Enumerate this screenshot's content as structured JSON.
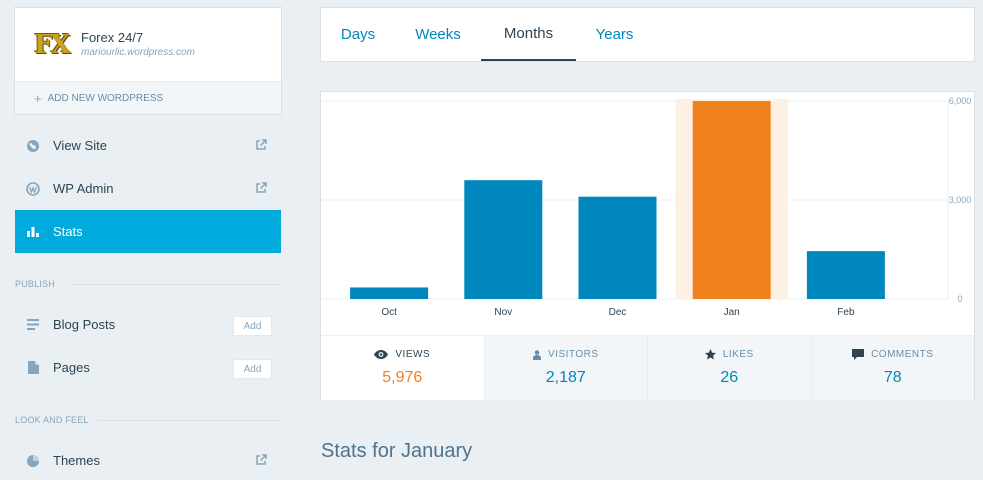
{
  "site": {
    "logo_text": "FX",
    "title": "Forex 24/7",
    "url": "mariourlic.wordpress.com",
    "add_new_label": "ADD NEW WORDPRESS"
  },
  "nav": {
    "view_site": "View Site",
    "wp_admin": "WP Admin",
    "stats": "Stats",
    "publish_heading": "PUBLISH",
    "blog_posts": "Blog Posts",
    "pages": "Pages",
    "add_label": "Add",
    "look_heading": "LOOK AND FEEL",
    "themes": "Themes"
  },
  "tabs": {
    "days": "Days",
    "weeks": "Weeks",
    "months": "Months",
    "years": "Years",
    "active": "Months"
  },
  "chart_data": {
    "type": "bar",
    "categories": [
      "Oct",
      "Nov",
      "Dec",
      "Jan",
      "Feb"
    ],
    "series": [
      {
        "values": [
          350,
          3600,
          3100,
          6000,
          1450
        ]
      }
    ],
    "highlighted": "Jan",
    "y_ticks": [
      "6,000",
      "3,000",
      "0"
    ],
    "ylim": [
      0,
      6000
    ],
    "grid": true,
    "colors": {
      "bar": "#0087be",
      "highlight_bar": "#f0821e",
      "highlight_bg": "#fdf0e4"
    }
  },
  "stats": {
    "views_label": "VIEWS",
    "views_value": "5,976",
    "visitors_label": "VISITORS",
    "visitors_value": "2,187",
    "likes_label": "LIKES",
    "likes_value": "26",
    "comments_label": "COMMENTS",
    "comments_value": "78"
  },
  "page_heading": "Stats for January"
}
